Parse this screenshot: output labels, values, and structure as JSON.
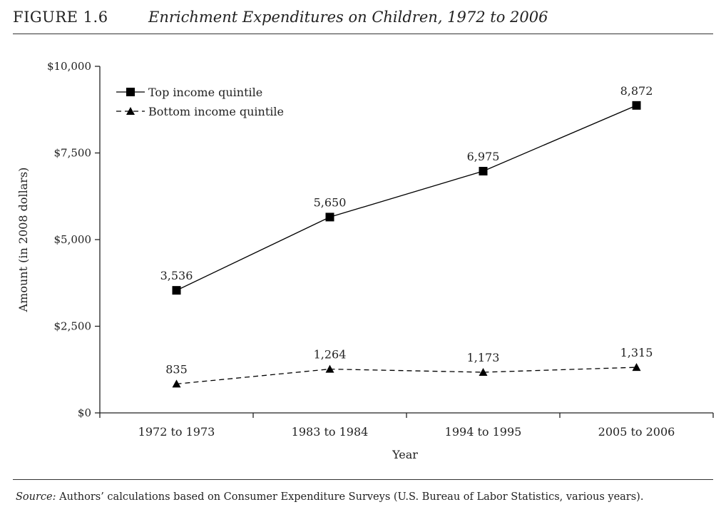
{
  "figure": {
    "number": "FIGURE 1.6",
    "title": "Enrichment Expenditures on Children, 1972 to 2006"
  },
  "source": {
    "label": "Source:",
    "text": " Authors’ calculations based on Consumer Expenditure Surveys (U.S. Bureau of Labor Statistics, various years)."
  },
  "chart_data": {
    "type": "line",
    "xlabel": "Year",
    "ylabel": "Amount (in 2008 dollars)",
    "categories": [
      "1972 to 1973",
      "1983 to 1984",
      "1994 to 1995",
      "2005 to 2006"
    ],
    "ylim": [
      0,
      10000
    ],
    "yticks": [
      0,
      2500,
      5000,
      7500,
      10000
    ],
    "ytick_labels": [
      "$0",
      "$2,500",
      "$5,000",
      "$7,500",
      "$10,000"
    ],
    "grid": false,
    "legend_position": "top-left",
    "series": [
      {
        "name": "Top income quintile",
        "values": [
          3536,
          5650,
          6975,
          8872
        ],
        "labels": [
          "3,536",
          "5,650",
          "6,975",
          "8,872"
        ],
        "marker": "square",
        "line_style": "solid",
        "color": "#000000"
      },
      {
        "name": "Bottom income quintile",
        "values": [
          835,
          1264,
          1173,
          1315
        ],
        "labels": [
          "835",
          "1,264",
          "1,173",
          "1,315"
        ],
        "marker": "triangle",
        "line_style": "dashed",
        "color": "#000000"
      }
    ]
  }
}
